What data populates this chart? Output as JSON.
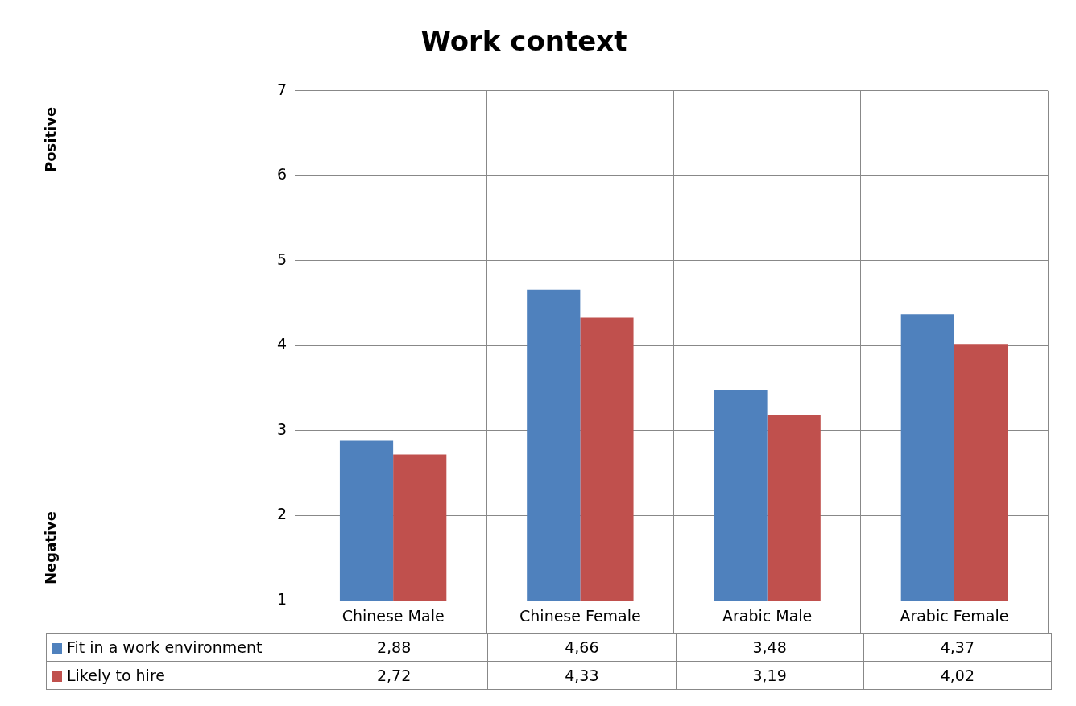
{
  "chart_data": {
    "type": "bar",
    "title": "Work context",
    "categories": [
      "Chinese Male",
      "Chinese Female",
      "Arabic Male",
      "Arabic Female"
    ],
    "series": [
      {
        "name": "Fit in a work environment",
        "color": "#4f81bd",
        "values": [
          2.88,
          4.66,
          3.48,
          4.37
        ],
        "value_labels": [
          "2,88",
          "4,66",
          "3,48",
          "4,37"
        ]
      },
      {
        "name": "Likely to hire",
        "color": "#c0504d",
        "values": [
          2.72,
          4.33,
          3.19,
          4.02
        ],
        "value_labels": [
          "2,72",
          "4,33",
          "3,19",
          "4,02"
        ]
      }
    ],
    "ylim": [
      1,
      7
    ],
    "yticks": [
      1,
      2,
      3,
      4,
      5,
      6,
      7
    ],
    "grid": "y",
    "legend": "bottom",
    "annotations": [
      "Positive",
      "Negative"
    ]
  }
}
